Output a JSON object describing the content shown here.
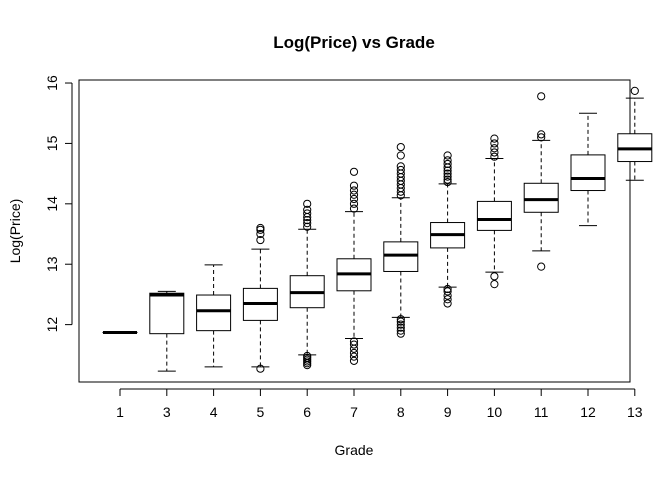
{
  "chart_data": {
    "type": "boxplot",
    "title": "Log(Price) vs Grade",
    "xlabel": "Grade",
    "ylabel": "Log(Price)",
    "ylim": [
      11.05,
      16.05
    ],
    "yticks": [
      "12",
      "13",
      "14",
      "15",
      "16"
    ],
    "grid": false,
    "categories": [
      "1",
      "3",
      "4",
      "5",
      "6",
      "7",
      "8",
      "9",
      "10",
      "11",
      "12",
      "13"
    ],
    "boxes": [
      {
        "grade": "1",
        "whisker_low": 11.87,
        "q1": 11.87,
        "median": 11.87,
        "q3": 11.87,
        "whisker_high": 11.87,
        "outliers": []
      },
      {
        "grade": "3",
        "whisker_low": 11.23,
        "q1": 11.85,
        "median": 12.49,
        "q3": 12.52,
        "whisker_high": 12.55,
        "outliers": []
      },
      {
        "grade": "4",
        "whisker_low": 11.3,
        "q1": 11.9,
        "median": 12.23,
        "q3": 12.49,
        "whisker_high": 12.99,
        "outliers": []
      },
      {
        "grade": "5",
        "whisker_low": 11.3,
        "q1": 12.07,
        "median": 12.35,
        "q3": 12.6,
        "whisker_high": 13.25,
        "outliers": [
          11.27,
          13.4,
          13.5,
          13.57,
          13.6
        ]
      },
      {
        "grade": "6",
        "whisker_low": 11.5,
        "q1": 12.28,
        "median": 12.53,
        "q3": 12.81,
        "whisker_high": 13.58,
        "outliers": [
          11.33,
          11.36,
          11.39,
          11.42,
          11.45,
          11.48,
          13.62,
          13.68,
          13.73,
          13.78,
          13.84,
          13.9,
          14.0
        ]
      },
      {
        "grade": "7",
        "whisker_low": 11.77,
        "q1": 12.56,
        "median": 12.84,
        "q3": 13.09,
        "whisker_high": 13.87,
        "outliers": [
          11.4,
          11.47,
          11.53,
          11.6,
          11.67,
          11.72,
          13.92,
          14.0,
          14.08,
          14.15,
          14.22,
          14.3,
          14.53
        ]
      },
      {
        "grade": "8",
        "whisker_low": 12.12,
        "q1": 12.88,
        "median": 13.15,
        "q3": 13.37,
        "whisker_high": 14.1,
        "outliers": [
          11.85,
          11.9,
          11.95,
          12.0,
          12.05,
          12.09,
          14.14,
          14.2,
          14.26,
          14.32,
          14.38,
          14.44,
          14.5,
          14.56,
          14.62,
          14.8,
          14.94
        ]
      },
      {
        "grade": "9",
        "whisker_low": 12.62,
        "q1": 13.27,
        "median": 13.49,
        "q3": 13.69,
        "whisker_high": 14.33,
        "outliers": [
          12.35,
          12.42,
          12.48,
          12.55,
          12.59,
          14.36,
          14.4,
          14.45,
          14.5,
          14.55,
          14.6,
          14.66,
          14.72,
          14.8
        ]
      },
      {
        "grade": "10",
        "whisker_low": 12.87,
        "q1": 13.56,
        "median": 13.74,
        "q3": 14.04,
        "whisker_high": 14.75,
        "outliers": [
          12.67,
          12.8,
          14.78,
          14.85,
          14.92,
          15.0,
          15.08
        ]
      },
      {
        "grade": "11",
        "whisker_low": 13.22,
        "q1": 13.86,
        "median": 14.07,
        "q3": 14.34,
        "whisker_high": 15.05,
        "outliers": [
          12.96,
          15.1,
          15.15,
          15.78
        ]
      },
      {
        "grade": "12",
        "whisker_low": 13.64,
        "q1": 14.22,
        "median": 14.42,
        "q3": 14.81,
        "whisker_high": 15.5,
        "outliers": []
      },
      {
        "grade": "13",
        "whisker_low": 14.39,
        "q1": 14.7,
        "median": 14.91,
        "q3": 15.16,
        "whisker_high": 15.75,
        "outliers": [
          15.87
        ]
      }
    ]
  }
}
